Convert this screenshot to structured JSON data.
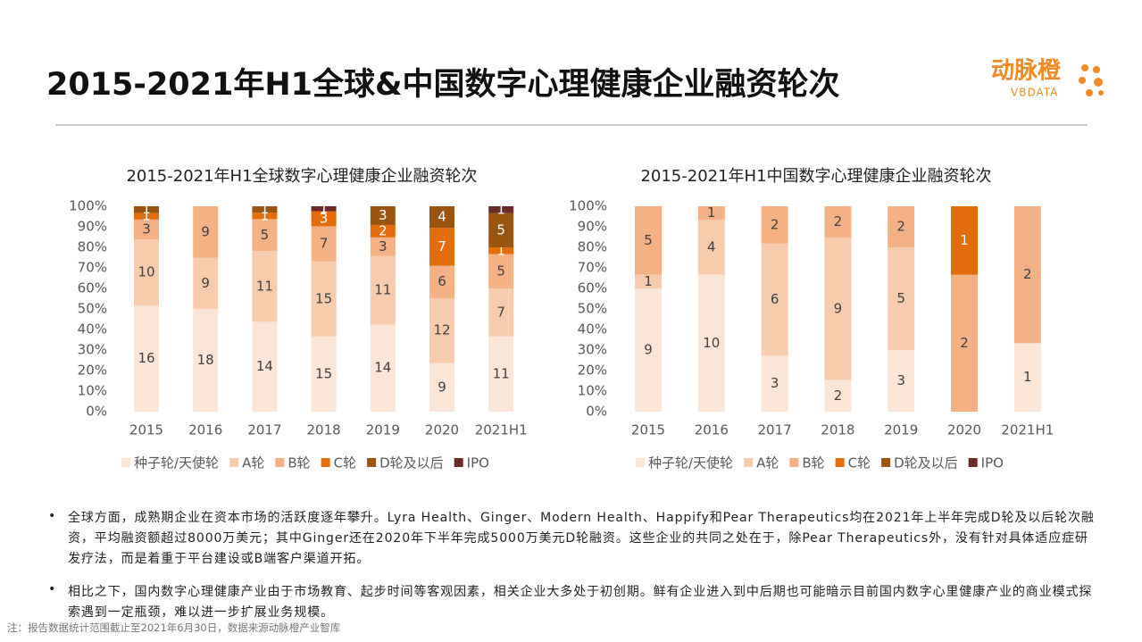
{
  "header": {
    "title": "2015-2021年H1全球&中国数字心理健康企业融资轮次",
    "logo": "动脉橙",
    "logo_sub": "VBDATA"
  },
  "chart_data": [
    {
      "type": "bar",
      "stacked": true,
      "title": "2015-2021年H1全球数字心理健康企业融资轮次",
      "categories": [
        "2015",
        "2016",
        "2017",
        "2018",
        "2019",
        "2020",
        "2021H1"
      ],
      "series": [
        {
          "name": "种子轮/天使轮",
          "color": "#fbe5d6",
          "values": [
            16,
            18,
            14,
            15,
            14,
            9,
            11
          ]
        },
        {
          "name": "A轮",
          "color": "#f8cbad",
          "values": [
            10,
            9,
            11,
            15,
            11,
            12,
            7
          ]
        },
        {
          "name": "B轮",
          "color": "#f4b183",
          "values": [
            3,
            9,
            5,
            7,
            3,
            6,
            5
          ]
        },
        {
          "name": "C轮",
          "color": "#e46c0a",
          "values": [
            1,
            0,
            1,
            3,
            2,
            7,
            1
          ]
        },
        {
          "name": "D轮及以后",
          "color": "#9a5410",
          "values": [
            1,
            0,
            1,
            0,
            3,
            4,
            5
          ]
        },
        {
          "name": "IPO",
          "color": "#6b2a2a",
          "values": [
            0,
            0,
            0,
            1,
            0,
            0,
            1
          ]
        }
      ],
      "ylim": [
        0,
        100
      ],
      "yticks": [
        {
          "value": 0,
          "label": "0%"
        },
        {
          "value": 10,
          "label": "10%"
        },
        {
          "value": 20,
          "label": "20%"
        },
        {
          "value": 30,
          "label": "30%"
        },
        {
          "value": 40,
          "label": "40%"
        },
        {
          "value": 50,
          "label": "50%"
        },
        {
          "value": 60,
          "label": "60%"
        },
        {
          "value": 70,
          "label": "70%"
        },
        {
          "value": 80,
          "label": "80%"
        },
        {
          "value": 90,
          "label": "90%"
        },
        {
          "value": 100,
          "label": "100%"
        }
      ],
      "legend": "bottom"
    },
    {
      "type": "bar",
      "stacked": true,
      "title": "2015-2021年H1中国数字心理健康企业融资轮次",
      "categories": [
        "2015",
        "2016",
        "2017",
        "2018",
        "2019",
        "2020",
        "2021H1"
      ],
      "series": [
        {
          "name": "种子轮/天使轮",
          "color": "#fbe5d6",
          "values": [
            9,
            10,
            3,
            2,
            3,
            0,
            1
          ]
        },
        {
          "name": "A轮",
          "color": "#f8cbad",
          "values": [
            1,
            4,
            6,
            9,
            5,
            0,
            0
          ]
        },
        {
          "name": "B轮",
          "color": "#f4b183",
          "values": [
            5,
            1,
            2,
            2,
            2,
            2,
            2
          ]
        },
        {
          "name": "C轮",
          "color": "#e46c0a",
          "values": [
            0,
            0,
            0,
            0,
            0,
            1,
            0
          ]
        },
        {
          "name": "D轮及以后",
          "color": "#9a5410",
          "values": [
            0,
            0,
            0,
            0,
            0,
            0,
            0
          ]
        },
        {
          "name": "IPO",
          "color": "#6b2a2a",
          "values": [
            0,
            0,
            0,
            0,
            0,
            0,
            0
          ]
        }
      ],
      "ylim": [
        0,
        100
      ],
      "yticks": [
        {
          "value": 0,
          "label": "0%"
        },
        {
          "value": 10,
          "label": "10%"
        },
        {
          "value": 20,
          "label": "20%"
        },
        {
          "value": 30,
          "label": "30%"
        },
        {
          "value": 40,
          "label": "40%"
        },
        {
          "value": 50,
          "label": "50%"
        },
        {
          "value": 60,
          "label": "60%"
        },
        {
          "value": 70,
          "label": "70%"
        },
        {
          "value": 80,
          "label": "80%"
        },
        {
          "value": 90,
          "label": "90%"
        },
        {
          "value": 100,
          "label": "100%"
        }
      ],
      "legend": "bottom"
    }
  ],
  "bullets": [
    "全球方面，成熟期企业在资本市场的活跃度逐年攀升。Lyra Health、Ginger、Modern Health、Happify和Pear Therapeutics均在2021年上半年完成D轮及以后轮次融资，平均融资额超过8000万美元；其中Ginger还在2020年下半年完成5000万美元D轮融资。这些企业的共同之处在于，除Pear Therapeutics外，没有针对具体适应症研发疗法，而是着重于平台建设或B端客户渠道开拓。",
    "相比之下，国内数字心理健康产业由于市场教育、起步时间等客观因素，相关企业大多处于初创期。鲜有企业进入到中后期也可能暗示目前国内数字心里健康产业的商业模式探索遇到一定瓶颈，难以进一步扩展业务规模。"
  ],
  "footnote": "注：报告数据统计范围截止至2021年6月30日，数据来源动脉橙产业智库"
}
